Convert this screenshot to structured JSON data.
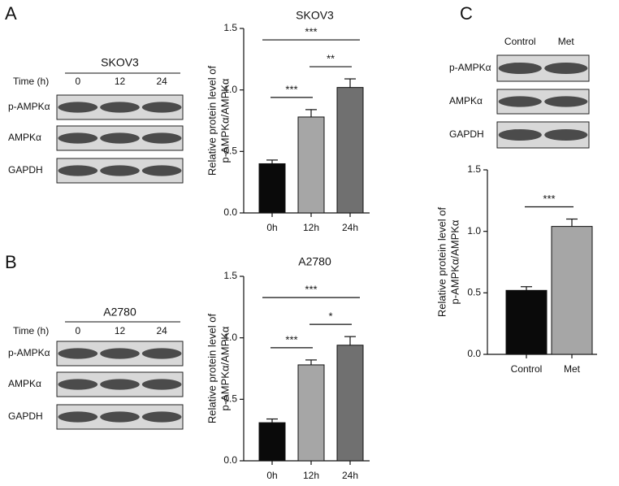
{
  "panels": [
    "A",
    "B",
    "C"
  ],
  "blots": [
    {
      "header": "SKOV3",
      "time_label": "Time (h)",
      "lanes": [
        "0",
        "12",
        "24"
      ],
      "rows": [
        "p-AMPKα",
        "AMPKα",
        "GAPDH"
      ]
    },
    {
      "header": "A2780",
      "time_label": "Time (h)",
      "lanes": [
        "0",
        "12",
        "24"
      ],
      "rows": [
        "p-AMPKα",
        "AMPKα",
        "GAPDH"
      ]
    },
    {
      "lanes": [
        "Control",
        "Met"
      ],
      "rows": [
        "p-AMPKα",
        "AMPKα",
        "GAPDH"
      ]
    }
  ],
  "chart_data": [
    {
      "type": "bar",
      "title": "SKOV3",
      "y_label": [
        "Relative protein level of",
        "p-AMPKα/AMPKα"
      ],
      "categories": [
        "0h",
        "12h",
        "24h"
      ],
      "values": [
        0.4,
        0.78,
        1.02
      ],
      "errors": [
        0.03,
        0.06,
        0.07
      ],
      "colors": [
        "#0a0a0a",
        "#a6a6a6",
        "#707070"
      ],
      "ylim": [
        0,
        1.5
      ],
      "yticks": [
        {
          "value": 0,
          "label": "0.0"
        },
        0.5,
        {
          "value": 1,
          "label": "1.0"
        },
        1.5
      ],
      "significance": [
        {
          "pair": [
            "0h",
            "12h"
          ],
          "label": "***"
        },
        {
          "pair": [
            "12h",
            "24h"
          ],
          "label": "**"
        },
        {
          "pair": [
            "0h",
            "24h"
          ],
          "label": "***"
        }
      ]
    },
    {
      "type": "bar",
      "title": "A2780",
      "y_label": [
        "Relative protein level of",
        "p-AMPKα/AMPKα"
      ],
      "categories": [
        "0h",
        "12h",
        "24h"
      ],
      "values": [
        0.31,
        0.78,
        0.94
      ],
      "errors": [
        0.03,
        0.04,
        0.07
      ],
      "colors": [
        "#0a0a0a",
        "#a6a6a6",
        "#707070"
      ],
      "ylim": [
        0,
        1.5
      ],
      "yticks": [
        {
          "value": 0,
          "label": "0.0"
        },
        0.5,
        {
          "value": 1,
          "label": "1.0"
        },
        1.5
      ],
      "significance": [
        {
          "pair": [
            "0h",
            "12h"
          ],
          "label": "***"
        },
        {
          "pair": [
            "12h",
            "24h"
          ],
          "label": "*"
        },
        {
          "pair": [
            "0h",
            "24h"
          ],
          "label": "***"
        }
      ]
    },
    {
      "type": "bar",
      "y_label": [
        "Relative protein level of",
        "p-AMPKα/AMPKα"
      ],
      "categories": [
        "Control",
        "Met"
      ],
      "values": [
        0.52,
        1.04
      ],
      "errors": [
        0.03,
        0.06
      ],
      "colors": [
        "#0a0a0a",
        "#a6a6a6"
      ],
      "ylim": [
        0,
        1.5
      ],
      "yticks": [
        {
          "value": 0,
          "label": "0.0"
        },
        0.5,
        {
          "value": 1,
          "label": "1.0"
        },
        1.5
      ],
      "significance": [
        {
          "pair": [
            "Control",
            "Met"
          ],
          "label": "***"
        }
      ]
    }
  ]
}
